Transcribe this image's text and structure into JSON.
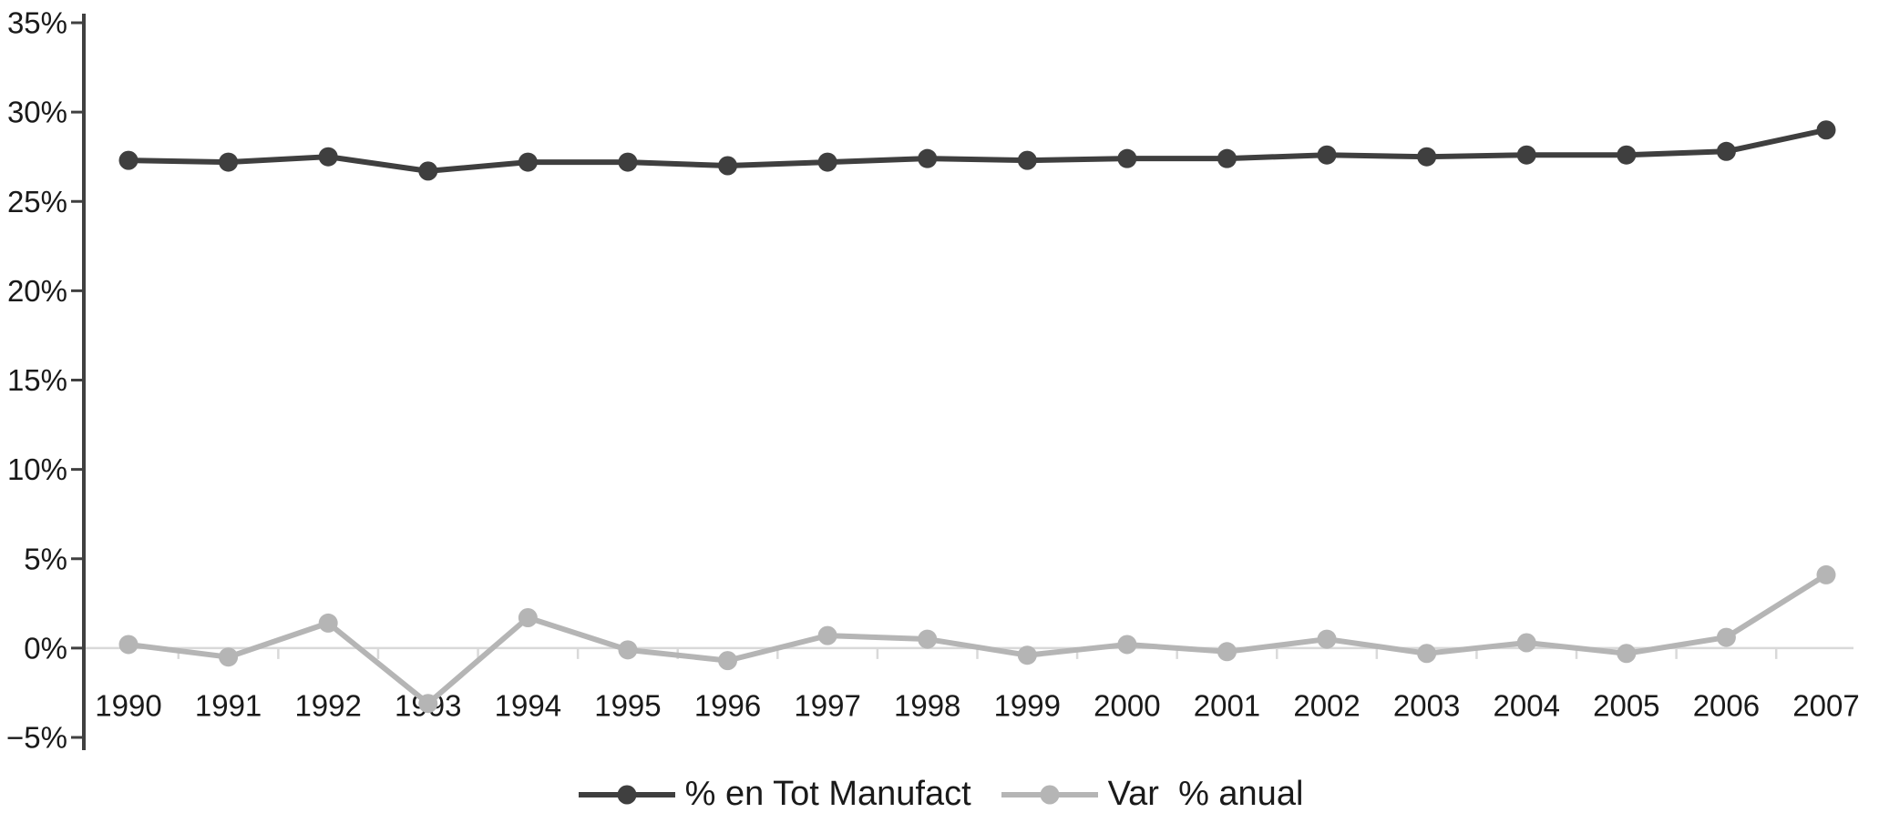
{
  "chart_data": {
    "type": "line",
    "x_labels": [
      "1990",
      "1991",
      "1992",
      "1993",
      "1994",
      "1995",
      "1996",
      "1997",
      "1998",
      "1999",
      "2000",
      "2001",
      "2002",
      "2003",
      "2004",
      "2005",
      "2006",
      "2007"
    ],
    "series": [
      {
        "name": "% en Tot Manufact",
        "color": "#3f3f3f",
        "values": [
          27.3,
          27.2,
          27.5,
          26.7,
          27.2,
          27.2,
          27.0,
          27.2,
          27.4,
          27.3,
          27.4,
          27.4,
          27.6,
          27.5,
          27.6,
          27.6,
          27.8,
          29.0
        ]
      },
      {
        "name": "Var  % anual",
        "color": "#b5b5b5",
        "values": [
          0.2,
          -0.5,
          1.4,
          -3.1,
          1.7,
          -0.1,
          -0.7,
          0.7,
          0.5,
          -0.4,
          0.2,
          -0.2,
          0.5,
          -0.3,
          0.3,
          -0.3,
          0.6,
          4.1
        ]
      }
    ],
    "ylim": [
      -5,
      35
    ],
    "yticks": [
      {
        "value": 35,
        "label": "35%"
      },
      {
        "value": 30,
        "label": "30%"
      },
      {
        "value": 25,
        "label": "25%"
      },
      {
        "value": 20,
        "label": "20%"
      },
      {
        "value": 15,
        "label": "15%"
      },
      {
        "value": 10,
        "label": "10%"
      },
      {
        "value": 5,
        "label": "5%"
      },
      {
        "value": 0,
        "label": "0%"
      },
      {
        "value": -5,
        "label": "−5%"
      }
    ],
    "legend_position": "bottom",
    "grid": false,
    "marker": "circle",
    "colors": {
      "axis": "#404040",
      "zero_line": "#d9d9d9",
      "text": "#1a1a1a",
      "background": "#ffffff"
    }
  }
}
